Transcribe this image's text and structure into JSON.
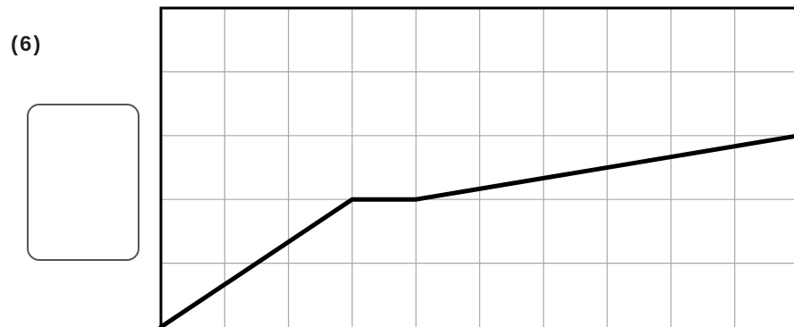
{
  "question": {
    "number_label": "(6)"
  },
  "answer_box": {
    "value": ""
  },
  "colors": {
    "grid": "#a8a8a8",
    "axes": "#000000",
    "line": "#000000"
  },
  "chart_data": {
    "type": "line",
    "title": "",
    "xlabel": "",
    "ylabel": "",
    "xlim": [
      0,
      10
    ],
    "ylim": [
      0,
      5
    ],
    "x_grid_step": 1,
    "y_grid_step": 1,
    "grid": true,
    "tick_labels": false,
    "series": [
      {
        "points": [
          {
            "x": 0,
            "y": 0
          },
          {
            "x": 3,
            "y": 2
          },
          {
            "x": 4,
            "y": 2
          },
          {
            "x": 10,
            "y": 3
          }
        ]
      }
    ]
  }
}
